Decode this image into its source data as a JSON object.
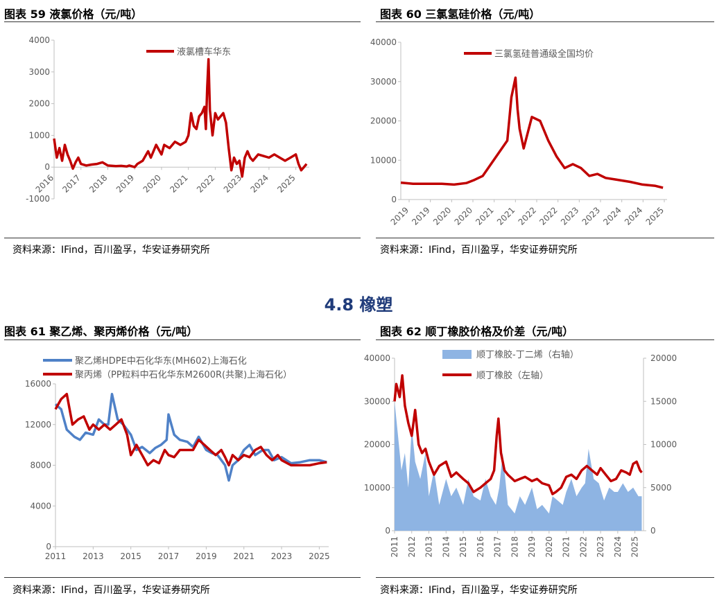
{
  "section_heading": "4.8 橡塑",
  "figures": [
    {
      "title": "图表 59 液氯价格（元/吨）",
      "source": "资料来源：IFind，百川盈孚，华安证券研究所"
    },
    {
      "title": "图表 60 三氯氢硅价格（元/吨）",
      "source": "资料来源：IFind，百川盈孚，华安证券研究所"
    },
    {
      "title": "图表 61 聚乙烯、聚丙烯价格（元/吨）",
      "source": "资料来源：IFind，百川盈孚，华安证券研究所"
    },
    {
      "title": "图表 62 顺丁橡胶价格及价差（元/吨）",
      "source": "资料来源：IFind，百川盈孚，华安证券研究所"
    }
  ],
  "colors": {
    "red": "#c00000",
    "blue": "#4f81c7",
    "lightblue": "#8eb4e3",
    "axis": "#bfbfbf",
    "text": "#595959"
  },
  "chart_data": [
    {
      "type": "line",
      "ylim": [
        -1000,
        4000
      ],
      "yticks": [
        "-1000",
        "0",
        "1000",
        "2000",
        "3000",
        "4000"
      ],
      "xlim": [
        2016,
        2025.5
      ],
      "xticks": [
        "2016",
        "2017",
        "2018",
        "2019",
        "2020",
        "2021",
        "2022",
        "2023",
        "2024",
        "2025"
      ],
      "legend": "top-right",
      "series": [
        {
          "name": "液氯槽车华东",
          "x": [
            2016.0,
            2016.1,
            2016.2,
            2016.3,
            2016.4,
            2016.5,
            2016.6,
            2016.7,
            2016.8,
            2016.9,
            2017.0,
            2017.2,
            2017.4,
            2017.6,
            2017.8,
            2018.0,
            2018.3,
            2018.5,
            2018.7,
            2018.8,
            2019.0,
            2019.1,
            2019.3,
            2019.5,
            2019.6,
            2019.8,
            2020.0,
            2020.1,
            2020.3,
            2020.5,
            2020.7,
            2020.9,
            2021.0,
            2021.1,
            2021.2,
            2021.3,
            2021.4,
            2021.5,
            2021.6,
            2021.65,
            2021.7,
            2021.75,
            2021.8,
            2021.9,
            2022.0,
            2022.1,
            2022.2,
            2022.3,
            2022.4,
            2022.5,
            2022.6,
            2022.7,
            2022.8,
            2022.9,
            2023.0,
            2023.1,
            2023.2,
            2023.3,
            2023.4,
            2023.6,
            2023.8,
            2024.0,
            2024.2,
            2024.4,
            2024.6,
            2024.8,
            2025.0,
            2025.1,
            2025.2,
            2025.3,
            2025.4
          ],
          "y": [
            900,
            300,
            600,
            200,
            700,
            400,
            200,
            -50,
            150,
            300,
            100,
            50,
            80,
            100,
            150,
            50,
            30,
            40,
            20,
            50,
            0,
            100,
            200,
            500,
            300,
            700,
            400,
            700,
            600,
            800,
            700,
            800,
            1000,
            1700,
            1300,
            1200,
            1600,
            1700,
            1900,
            1200,
            2500,
            3400,
            1800,
            1000,
            1700,
            1500,
            1600,
            1700,
            1400,
            600,
            -100,
            300,
            100,
            200,
            -300,
            300,
            500,
            300,
            200,
            400,
            350,
            300,
            400,
            300,
            200,
            300,
            400,
            100,
            -100,
            0,
            100
          ]
        }
      ]
    },
    {
      "type": "line",
      "ylim": [
        0,
        40000
      ],
      "yticks": [
        "0",
        "10000",
        "20000",
        "30000",
        "40000"
      ],
      "xlim": [
        2019,
        2025.5
      ],
      "xticks": [
        "2019",
        "2019",
        "2020",
        "2020",
        "2021",
        "2021",
        "2022",
        "2022",
        "2023",
        "2023",
        "2024",
        "2024",
        "2025"
      ],
      "legend": "top-right",
      "series": [
        {
          "name": "三氯氢硅普通级全国均价",
          "x": [
            2019.0,
            2019.3,
            2019.6,
            2020.0,
            2020.3,
            2020.6,
            2020.8,
            2021.0,
            2021.2,
            2021.4,
            2021.6,
            2021.7,
            2021.8,
            2021.85,
            2021.9,
            2022.0,
            2022.2,
            2022.4,
            2022.6,
            2022.8,
            2023.0,
            2023.2,
            2023.4,
            2023.6,
            2023.8,
            2024.0,
            2024.3,
            2024.6,
            2024.9,
            2025.2,
            2025.4
          ],
          "y": [
            4300,
            4000,
            4000,
            4000,
            3800,
            4200,
            5000,
            6000,
            9000,
            12000,
            15000,
            26000,
            31000,
            23000,
            18000,
            13000,
            21000,
            20000,
            15000,
            11000,
            8000,
            9000,
            8000,
            6000,
            6500,
            5500,
            5000,
            4500,
            3800,
            3500,
            3000
          ]
        }
      ]
    },
    {
      "type": "line",
      "ylim": [
        0,
        16000
      ],
      "yticks": [
        "0",
        "4000",
        "8000",
        "12000",
        "16000"
      ],
      "xlim": [
        2011,
        2025.5
      ],
      "xticks": [
        "2011",
        "2013",
        "2015",
        "2017",
        "2019",
        "2021",
        "2023",
        "2025"
      ],
      "legend": "top-left",
      "series": [
        {
          "name": "聚乙烯HDPE中石化华东(MH602)上海石化",
          "x": [
            2011.0,
            2011.3,
            2011.6,
            2012.0,
            2012.3,
            2012.6,
            2013.0,
            2013.3,
            2013.6,
            2013.8,
            2014.0,
            2014.3,
            2014.6,
            2015.0,
            2015.3,
            2015.6,
            2016.0,
            2016.3,
            2016.6,
            2016.9,
            2017.0,
            2017.3,
            2017.6,
            2018.0,
            2018.3,
            2018.6,
            2019.0,
            2019.3,
            2019.6,
            2020.0,
            2020.2,
            2020.4,
            2020.7,
            2021.0,
            2021.3,
            2021.6,
            2022.0,
            2022.3,
            2022.6,
            2023.0,
            2023.5,
            2024.0,
            2024.5,
            2025.0,
            2025.4
          ],
          "y": [
            14000,
            13500,
            11500,
            10800,
            10500,
            11200,
            11000,
            12500,
            12000,
            12000,
            15000,
            12500,
            12000,
            11000,
            9500,
            9800,
            9200,
            9700,
            10000,
            10500,
            13000,
            11000,
            10500,
            10300,
            9800,
            10800,
            9500,
            9200,
            9000,
            8000,
            6500,
            8000,
            8500,
            9500,
            10000,
            9000,
            9500,
            9500,
            8500,
            8800,
            8200,
            8300,
            8500,
            8500,
            8300
          ]
        },
        {
          "name": "聚丙烯（PP粒料中石化华东M2600R(共聚)上海石化）",
          "x": [
            2011.0,
            2011.3,
            2011.6,
            2011.9,
            2012.2,
            2012.5,
            2012.8,
            2013.0,
            2013.3,
            2013.6,
            2013.9,
            2014.2,
            2014.5,
            2014.8,
            2015.0,
            2015.3,
            2015.6,
            2015.9,
            2016.2,
            2016.5,
            2016.8,
            2017.0,
            2017.3,
            2017.6,
            2018.0,
            2018.3,
            2018.6,
            2018.9,
            2019.2,
            2019.5,
            2019.8,
            2020.0,
            2020.2,
            2020.4,
            2020.7,
            2021.0,
            2021.3,
            2021.6,
            2021.9,
            2022.2,
            2022.5,
            2022.8,
            2023.0,
            2023.5,
            2024.0,
            2024.5,
            2025.0,
            2025.4
          ],
          "y": [
            13500,
            14500,
            15000,
            12000,
            12500,
            12800,
            11500,
            12000,
            11500,
            12000,
            11500,
            12000,
            12500,
            11000,
            9000,
            10000,
            9000,
            8000,
            8500,
            8200,
            9500,
            9000,
            8800,
            9500,
            9500,
            9500,
            10500,
            10000,
            9500,
            9000,
            9500,
            8800,
            8000,
            9000,
            8500,
            9000,
            8800,
            9500,
            9800,
            9000,
            8500,
            9000,
            8500,
            8000,
            8000,
            8000,
            8200,
            8300
          ]
        }
      ]
    },
    {
      "type": "combo",
      "ylim_left": [
        0,
        40000
      ],
      "yticks_left": [
        "0",
        "10000",
        "20000",
        "30000",
        "40000"
      ],
      "ylim_right": [
        0,
        20000
      ],
      "yticks_right": [
        "0",
        "5000",
        "10000",
        "15000",
        "20000"
      ],
      "xlim": [
        2011,
        2025.5
      ],
      "xticks": [
        "2011",
        "2012",
        "2013",
        "2014",
        "2015",
        "2016",
        "2017",
        "2018",
        "2019",
        "2020",
        "2021",
        "2022",
        "2023",
        "2024",
        "2025"
      ],
      "legend": "top-center",
      "series": [
        {
          "name": "顺丁橡胶-丁二烯（右轴）",
          "type": "area",
          "axis": "right",
          "x": [
            2011.0,
            2011.2,
            2011.4,
            2011.6,
            2011.8,
            2012.0,
            2012.2,
            2012.5,
            2012.8,
            2013.0,
            2013.3,
            2013.6,
            2014.0,
            2014.3,
            2014.6,
            2015.0,
            2015.3,
            2015.6,
            2016.0,
            2016.3,
            2016.6,
            2016.9,
            2017.1,
            2017.3,
            2017.6,
            2018.0,
            2018.3,
            2018.6,
            2019.0,
            2019.3,
            2019.6,
            2020.0,
            2020.2,
            2020.5,
            2020.8,
            2021.0,
            2021.3,
            2021.6,
            2021.9,
            2022.1,
            2022.3,
            2022.6,
            2022.9,
            2023.2,
            2023.5,
            2023.8,
            2024.0,
            2024.3,
            2024.6,
            2024.9,
            2025.2,
            2025.4
          ],
          "y": [
            15000,
            11000,
            7000,
            9000,
            5000,
            12000,
            8000,
            6000,
            9000,
            4000,
            7000,
            3000,
            6000,
            4000,
            5000,
            3000,
            6000,
            4000,
            3500,
            6000,
            4000,
            3000,
            5000,
            9000,
            3000,
            2000,
            4000,
            3000,
            5000,
            2500,
            3000,
            2000,
            4000,
            3500,
            3000,
            4500,
            6000,
            4000,
            5000,
            5500,
            9500,
            6000,
            5500,
            3500,
            5000,
            4500,
            4500,
            5500,
            4500,
            5000,
            4000,
            4000
          ]
        },
        {
          "name": "顺丁橡胶（左轴）",
          "type": "line",
          "axis": "left",
          "x": [
            2011.0,
            2011.1,
            2011.3,
            2011.45,
            2011.6,
            2011.8,
            2012.0,
            2012.2,
            2012.4,
            2012.6,
            2012.8,
            2013.0,
            2013.3,
            2013.6,
            2014.0,
            2014.3,
            2014.6,
            2015.0,
            2015.3,
            2015.6,
            2016.0,
            2016.3,
            2016.6,
            2016.8,
            2016.95,
            2017.05,
            2017.2,
            2017.4,
            2017.6,
            2018.0,
            2018.3,
            2018.6,
            2019.0,
            2019.3,
            2019.6,
            2020.0,
            2020.2,
            2020.4,
            2020.7,
            2021.0,
            2021.3,
            2021.6,
            2021.9,
            2022.2,
            2022.5,
            2022.8,
            2023.0,
            2023.3,
            2023.6,
            2023.9,
            2024.2,
            2024.5,
            2024.7,
            2024.9,
            2025.1,
            2025.3,
            2025.4
          ],
          "y": [
            30000,
            34000,
            31000,
            36000,
            29000,
            25000,
            22000,
            28000,
            20000,
            18000,
            19000,
            16000,
            13000,
            15000,
            16000,
            12500,
            13500,
            12000,
            11000,
            9000,
            10000,
            11000,
            12000,
            14000,
            22000,
            26000,
            18000,
            14000,
            13000,
            11500,
            12000,
            12500,
            11500,
            12000,
            11000,
            10500,
            8500,
            9000,
            10000,
            12500,
            13000,
            12000,
            14000,
            15000,
            14000,
            13000,
            14500,
            13000,
            11500,
            12000,
            14000,
            13500,
            13000,
            15500,
            16000,
            14000,
            13500
          ]
        }
      ]
    }
  ]
}
